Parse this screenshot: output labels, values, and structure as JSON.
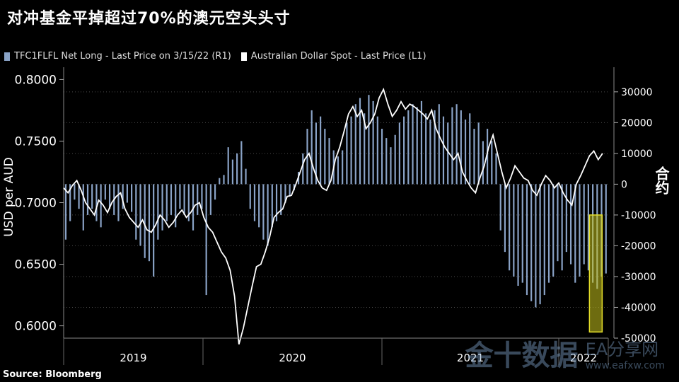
{
  "title": "对冲基金平掉超过70%的澳元空头头寸",
  "source": "Source: Bloomberg",
  "watermark": {
    "main": "金十数据",
    "sub": "EA分享网",
    "url": "www.eafxw.com"
  },
  "colors": {
    "background": "#000000",
    "bars": "#8aa3c7",
    "line": "#ffffff",
    "highlight": "#c8c41e",
    "grid": "#555555"
  },
  "chart_data": {
    "type": "bar+line",
    "series": [
      {
        "name": "TFC1FLFL Net Long - Last Price on 3/15/22 (R1)",
        "kind": "bar",
        "axis": "right",
        "values": [
          -18000,
          -12000,
          -5000,
          -8000,
          -15000,
          -10000,
          -8000,
          -12000,
          -14000,
          -5000,
          -8000,
          -10000,
          -12000,
          -8000,
          -6000,
          -9000,
          -18000,
          -20000,
          -24000,
          -25000,
          -30000,
          -18000,
          -15000,
          -12000,
          -10000,
          -14000,
          -8000,
          -10000,
          -12000,
          -15000,
          -10000,
          -8000,
          -36000,
          -10000,
          -5000,
          2000,
          3000,
          12000,
          8000,
          10000,
          14000,
          5000,
          -8000,
          -12000,
          -14000,
          -18000,
          -20000,
          -14000,
          -12000,
          -10000,
          -6000,
          -4000,
          -2000,
          4000,
          10000,
          18000,
          24000,
          20000,
          22000,
          18000,
          15000,
          11000,
          9000,
          11000,
          20000,
          22000,
          26000,
          28000,
          23000,
          29000,
          27000,
          22000,
          18000,
          15000,
          12000,
          16000,
          20000,
          22000,
          24000,
          26000,
          25000,
          27000,
          23000,
          21000,
          24000,
          26000,
          22000,
          20000,
          25000,
          26000,
          24000,
          21000,
          23000,
          18000,
          20000,
          14000,
          18000,
          14000,
          10000,
          -15000,
          -22000,
          -28000,
          -30000,
          -33000,
          -32000,
          -36000,
          -38000,
          -40000,
          -39000,
          -36000,
          -32000,
          -30000,
          -25000,
          -28000,
          -22000,
          -26000,
          -32000,
          -30000,
          -26000,
          -28000,
          -32000,
          -34000,
          -30000,
          -29000
        ]
      },
      {
        "name": "Australian Dollar Spot - Last Price (L1)",
        "kind": "line",
        "axis": "left",
        "values": [
          0.712,
          0.708,
          0.714,
          0.718,
          0.71,
          0.7,
          0.695,
          0.69,
          0.702,
          0.698,
          0.692,
          0.7,
          0.705,
          0.708,
          0.695,
          0.688,
          0.684,
          0.68,
          0.686,
          0.678,
          0.676,
          0.682,
          0.69,
          0.686,
          0.68,
          0.684,
          0.69,
          0.694,
          0.688,
          0.692,
          0.698,
          0.7,
          0.688,
          0.68,
          0.676,
          0.668,
          0.66,
          0.655,
          0.645,
          0.624,
          0.585,
          0.598,
          0.615,
          0.632,
          0.648,
          0.65,
          0.66,
          0.672,
          0.688,
          0.692,
          0.695,
          0.705,
          0.706,
          0.715,
          0.725,
          0.735,
          0.74,
          0.728,
          0.718,
          0.712,
          0.71,
          0.718,
          0.735,
          0.745,
          0.758,
          0.772,
          0.778,
          0.77,
          0.775,
          0.76,
          0.765,
          0.772,
          0.785,
          0.792,
          0.78,
          0.77,
          0.775,
          0.782,
          0.776,
          0.78,
          0.778,
          0.775,
          0.772,
          0.768,
          0.775,
          0.76,
          0.752,
          0.745,
          0.74,
          0.735,
          0.74,
          0.725,
          0.718,
          0.712,
          0.708,
          0.72,
          0.73,
          0.745,
          0.755,
          0.74,
          0.725,
          0.712,
          0.72,
          0.73,
          0.725,
          0.72,
          0.718,
          0.71,
          0.706,
          0.715,
          0.722,
          0.718,
          0.712,
          0.716,
          0.708,
          0.702,
          0.698,
          0.715,
          0.722,
          0.73,
          0.738,
          0.742,
          0.735,
          0.74
        ]
      }
    ],
    "x_labels": [
      "2019",
      "2020",
      "2021",
      "2022"
    ],
    "left_axis": {
      "label": "USD per AUD",
      "ticks": [
        "0.8000",
        "0.7500",
        "0.7000",
        "0.6500",
        "0.6000"
      ],
      "range": [
        0.59,
        0.81
      ]
    },
    "right_axis": {
      "label": "合约",
      "ticks": [
        "30000",
        "20000",
        "10000",
        "0",
        "-10000",
        "-20000",
        "-30000",
        "-40000",
        "-50000"
      ],
      "range": [
        -50000,
        38000
      ]
    },
    "highlight": {
      "label": "",
      "from": -10000,
      "to": -48000,
      "position": "last-bars"
    },
    "grid": true,
    "legend": "top-left"
  }
}
